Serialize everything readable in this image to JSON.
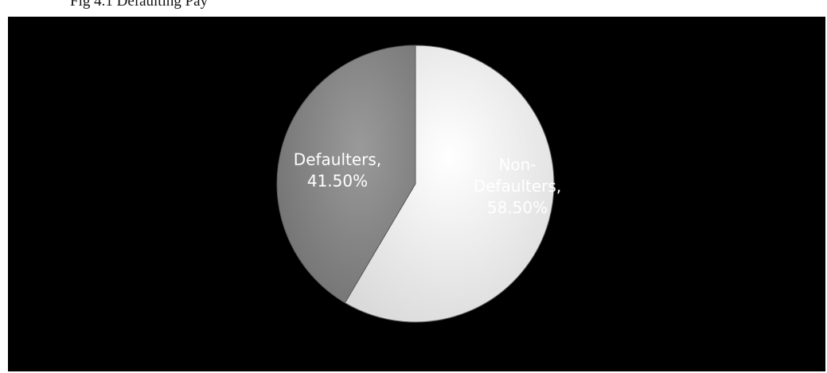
{
  "caption": {
    "text": "Fig 4.1 Defaulting Pay"
  },
  "chart_data": {
    "type": "pie",
    "title": "",
    "slices": [
      {
        "name": "Non-Defaulters",
        "value": 58.5,
        "label_lines": [
          "Non-",
          "Defaulters,",
          "58.50%"
        ],
        "color": "#f2f2f2",
        "text_color": "#ffffff"
      },
      {
        "name": "Defaulters",
        "value": 41.5,
        "label_lines": [
          "Defaulters,",
          "41.50%"
        ],
        "color": "#8c8c8c",
        "text_color": "#ffffff"
      }
    ],
    "start_angle_deg": 0,
    "direction": "clockwise",
    "legend": "none",
    "background": "#000000"
  }
}
